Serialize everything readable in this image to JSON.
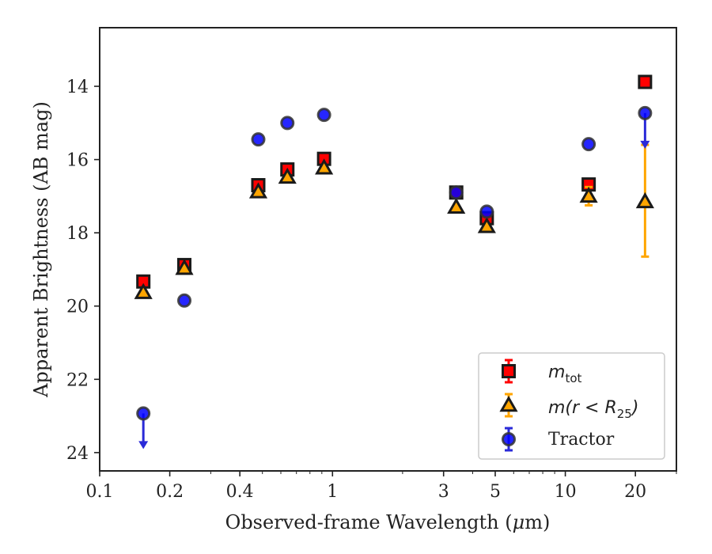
{
  "chart_data": {
    "type": "scatter",
    "title": "",
    "xlabel_parts": [
      "Observed-frame Wavelength (",
      "μ",
      "m)"
    ],
    "ylabel": "Apparent Brightness (AB mag)",
    "xscale": "log",
    "xlim": [
      0.1,
      30
    ],
    "ylim": [
      24.5,
      12.4
    ],
    "y_inverted": true,
    "xticks": [
      {
        "value": 0.1,
        "label": "0.1"
      },
      {
        "value": 0.2,
        "label": "0.2"
      },
      {
        "value": 0.4,
        "label": "0.4"
      },
      {
        "value": 1,
        "label": "1"
      },
      {
        "value": 3,
        "label": "3"
      },
      {
        "value": 5,
        "label": "5"
      },
      {
        "value": 10,
        "label": "10"
      },
      {
        "value": 20,
        "label": "20"
      }
    ],
    "yticks": [
      {
        "value": 14,
        "label": "14"
      },
      {
        "value": 16,
        "label": "16"
      },
      {
        "value": 18,
        "label": "18"
      },
      {
        "value": 20,
        "label": "20"
      },
      {
        "value": 22,
        "label": "22"
      },
      {
        "value": 24,
        "label": "24"
      }
    ],
    "legend_position": "lower-right",
    "series": [
      {
        "legend_main": "m",
        "legend_sub": "tot",
        "marker": "square",
        "color": "#ff0000",
        "edgecolor": "#1a1a1a",
        "errcolor": "#ff0000",
        "points": [
          {
            "x": 0.154,
            "y": 19.33
          },
          {
            "x": 0.231,
            "y": 18.88
          },
          {
            "x": 0.48,
            "y": 16.7
          },
          {
            "x": 0.64,
            "y": 16.27
          },
          {
            "x": 0.92,
            "y": 15.98
          },
          {
            "x": 3.4,
            "y": 16.9
          },
          {
            "x": 4.6,
            "y": 17.6
          },
          {
            "x": 12.6,
            "y": 16.68
          },
          {
            "x": 22.0,
            "y": 13.88
          }
        ]
      },
      {
        "legend_main": "m(r < R",
        "legend_sub": "25",
        "legend_end": ")",
        "marker": "triangle",
        "color": "#ffa500",
        "edgecolor": "#1a1a1a",
        "errcolor": "#ffa500",
        "points": [
          {
            "x": 0.154,
            "y": 19.63
          },
          {
            "x": 0.231,
            "y": 18.97
          },
          {
            "x": 0.48,
            "y": 16.88
          },
          {
            "x": 0.64,
            "y": 16.48
          },
          {
            "x": 0.92,
            "y": 16.23
          },
          {
            "x": 3.4,
            "y": 17.3
          },
          {
            "x": 4.6,
            "y": 17.83
          },
          {
            "x": 12.6,
            "y": 17.0,
            "err": 0.25
          },
          {
            "x": 22.0,
            "y": 17.15,
            "err_low": 1.55,
            "err_high": 1.5
          }
        ]
      },
      {
        "legend_main": "Tractor",
        "marker": "circle",
        "color": "#0000ff",
        "edgecolor": "#333333",
        "errcolor": "#2a2ad8",
        "points": [
          {
            "x": 0.154,
            "y": 22.93,
            "upper_limit": true
          },
          {
            "x": 0.231,
            "y": 19.85
          },
          {
            "x": 0.48,
            "y": 15.45
          },
          {
            "x": 0.64,
            "y": 15.0
          },
          {
            "x": 0.92,
            "y": 14.78
          },
          {
            "x": 3.4,
            "y": 16.9
          },
          {
            "x": 4.6,
            "y": 17.42
          },
          {
            "x": 12.6,
            "y": 15.58
          },
          {
            "x": 22.0,
            "y": 14.73,
            "upper_limit": true
          }
        ]
      }
    ]
  }
}
